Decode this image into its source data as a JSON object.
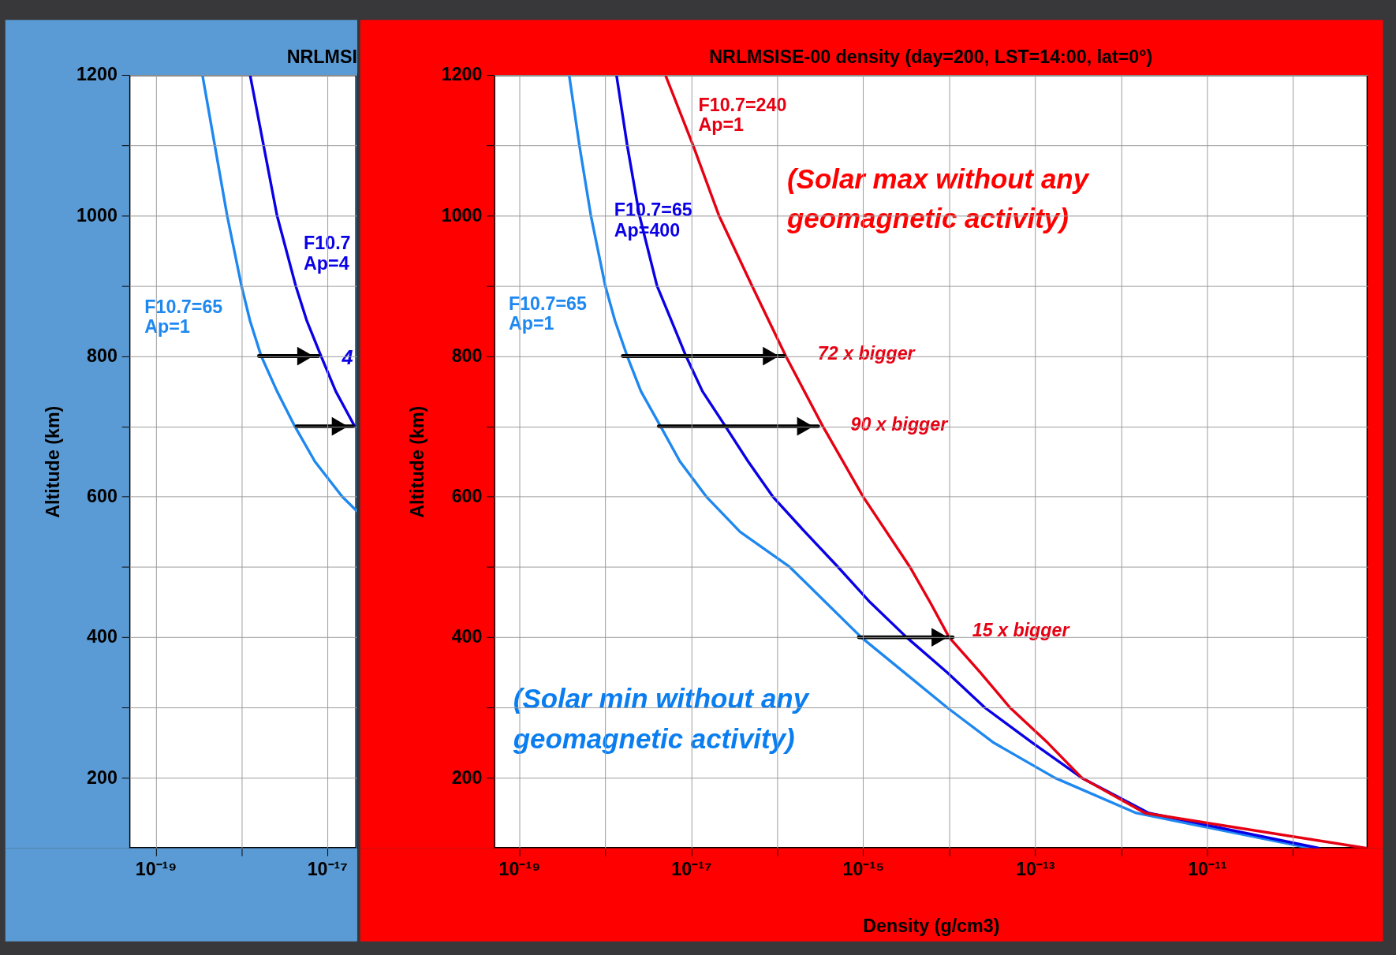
{
  "chart_data": [
    {
      "type": "line",
      "title": "NRLMSI",
      "ylabel": "Altitude (km)",
      "log": "x",
      "grid": true,
      "xlim": [
        4.9e-20,
        2.2e-17
      ],
      "ylim": [
        100,
        1200
      ],
      "xticks": [
        {
          "value": 1e-19,
          "label": "10⁻¹⁹"
        },
        {
          "value": 1e-18,
          "label": null
        },
        {
          "value": 1e-17,
          "label": "10⁻¹⁷"
        }
      ],
      "yticks": [
        200,
        {
          "value": 300,
          "label": null
        },
        400,
        {
          "value": 500,
          "label": null
        },
        600,
        {
          "value": 700,
          "label": null
        },
        800,
        {
          "value": 900,
          "label": null
        },
        1000,
        {
          "value": 1100,
          "label": null
        },
        1200
      ],
      "annotations": [
        "4"
      ],
      "series": [
        {
          "name": "F10.7=65\nAp=1",
          "color": "#1e88f0",
          "x": [
            3.5e-19,
            6.8e-19,
            1e-18,
            1.26e-18,
            1.7e-18,
            2.6e-18,
            4.2e-18,
            7.2e-18,
            1.5e-17,
            2.2e-17
          ],
          "values": [
            1200,
            1000,
            900,
            850,
            800,
            750,
            700,
            650,
            600,
            580
          ]
        },
        {
          "name": "F10.7\nAp=4",
          "color": "#0a00e6",
          "x": [
            1.26e-18,
            2.6e-18,
            4.3e-18,
            5.8e-18,
            8.5e-18,
            1.26e-17,
            2.1e-17
          ],
          "values": [
            1200,
            1000,
            900,
            850,
            800,
            750,
            700
          ]
        },
        {
          "type": "line",
          "color": "#000000",
          "x": [
            1.6e-18,
            7.9e-18
          ],
          "values": [
            800,
            800
          ]
        },
        {
          "type": "line",
          "color": "#000000",
          "x": [
            4.4e-18,
            2e-17
          ],
          "values": [
            700,
            700
          ]
        }
      ]
    },
    {
      "type": "line",
      "title": "NRLMSISE-00 density (day=200, LST=14:00, lat=0°)",
      "xlabel": "Density (g/cm3)",
      "ylabel": "Altitude (km)",
      "log": "x",
      "grid": true,
      "xlim": [
        5.1e-20,
        7.4e-10
      ],
      "ylim": [
        100,
        1200
      ],
      "xticks": [
        {
          "value": 1e-19,
          "label": "10⁻¹⁹"
        },
        {
          "value": 1e-18,
          "label": null
        },
        {
          "value": 1e-17,
          "label": "10⁻¹⁷"
        },
        {
          "value": 1e-16,
          "label": null
        },
        {
          "value": 1e-15,
          "label": "10⁻¹⁵"
        },
        {
          "value": 1e-14,
          "label": null
        },
        {
          "value": 1e-13,
          "label": "10⁻¹³"
        },
        {
          "value": 1e-12,
          "label": null
        },
        {
          "value": 1e-11,
          "label": "10⁻¹¹"
        },
        {
          "value": 1e-10,
          "label": null
        }
      ],
      "yticks": [
        200,
        {
          "value": 300,
          "label": null
        },
        400,
        {
          "value": 500,
          "label": null
        },
        600,
        {
          "value": 700,
          "label": null
        },
        800,
        {
          "value": 900,
          "label": null
        },
        1000,
        {
          "value": 1100,
          "label": null
        },
        1200
      ],
      "annotations": [
        "(Solar max without any\ngeomagnetic activity)",
        "(Solar min without any\ngeomagnetic activity)",
        "72 x bigger",
        "90 x bigger",
        "15 x bigger"
      ],
      "series": [
        {
          "name": "F10.7=65\nAp=1",
          "color": "#1e88f0",
          "x": [
            3.8e-19,
            5e-19,
            6.8e-19,
            1e-18,
            1.3e-18,
            1.8e-18,
            2.6e-18,
            4.4e-18,
            7.4e-18,
            1.5e-17,
            3.7e-17,
            1.4e-16,
            9.5e-16,
            3e-15,
            9.5e-15,
            3.3e-14,
            1.7e-13,
            1.5e-12,
            1.6e-10
          ],
          "values": [
            1200,
            1100,
            1000,
            900,
            850,
            800,
            750,
            700,
            650,
            600,
            550,
            500,
            400,
            350,
            300,
            250,
            200,
            150,
            100
          ]
        },
        {
          "name": "F10.7=65\nAp=400",
          "color": "#0a00e6",
          "x": [
            1.35e-18,
            1.8e-18,
            2.5e-18,
            4e-18,
            5.9e-18,
            8.7e-18,
            1.35e-17,
            2.5e-17,
            4.6e-17,
            8.9e-17,
            2.1e-16,
            5.1e-16,
            1.2e-15,
            3.2e-15,
            9.5e-15,
            2.6e-14,
            9.3e-14,
            3.5e-13,
            2.1e-12,
            2e-10
          ],
          "values": [
            1200,
            1100,
            1000,
            900,
            850,
            800,
            750,
            700,
            650,
            600,
            550,
            500,
            450,
            400,
            350,
            300,
            250,
            200,
            150,
            100
          ]
        },
        {
          "name": "F10.7=240\nAp=1",
          "color": "#e60012",
          "x": [
            5e-18,
            1.05e-17,
            2.1e-17,
            5.1e-17,
            1.26e-16,
            3.4e-16,
            1e-15,
            3.5e-15,
            6e-15,
            1e-14,
            2.3e-14,
            5.1e-14,
            1.4e-13,
            3.5e-13,
            1.9e-12,
            7.1e-10
          ],
          "values": [
            1200,
            1100,
            1000,
            900,
            800,
            700,
            600,
            500,
            450,
            400,
            350,
            300,
            250,
            200,
            150,
            100
          ]
        },
        {
          "type": "line",
          "color": "#000000",
          "x": [
            1.6e-18,
            1.2e-16
          ],
          "values": [
            800,
            800
          ]
        },
        {
          "type": "line",
          "color": "#000000",
          "x": [
            4.2e-18,
            3e-16
          ],
          "values": [
            700,
            700
          ]
        },
        {
          "type": "line",
          "color": "#000000",
          "x": [
            8.9e-16,
            1.1e-14
          ],
          "values": [
            400,
            400
          ]
        }
      ]
    }
  ]
}
